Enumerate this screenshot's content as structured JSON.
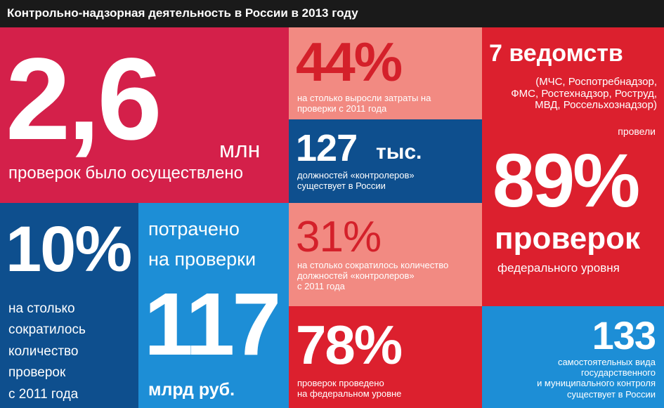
{
  "header": {
    "title": "Контрольно-надзорная деятельность в России в 2013 году"
  },
  "colors": {
    "crimson": "#d4204a",
    "red": "#dc202e",
    "pink": "#f28a82",
    "dark_blue": "#0e4f8e",
    "blue": "#1d8ed6",
    "header_bg": "#1a1a1a",
    "pink_text": "#d4202a"
  },
  "inspections_total": {
    "value": "2,6",
    "unit": "млн",
    "caption": "проверок было осуществлено"
  },
  "cost_growth": {
    "value": "44%",
    "caption": [
      "на столько выросли затраты на",
      "проверки с 2011 года"
    ]
  },
  "agencies": {
    "title": "7 ведомств",
    "list": [
      "(МЧС, Роспотребнадзор,",
      "ФМС, Ростехнадзор, Роструд,",
      "МВД, Россельхознадзор)"
    ],
    "conducted": "провели",
    "value": "89%",
    "label": "проверок",
    "sublabel": "федерального уровня"
  },
  "controllers": {
    "value": "127",
    "unit": "тыс.",
    "caption": [
      "должностей «контролеров»",
      "существует в России"
    ]
  },
  "inspections_drop": {
    "value": "10%",
    "caption": [
      "на столько",
      "сократилось",
      "количество",
      "проверок",
      "с 2011 года"
    ]
  },
  "spending": {
    "intro": [
      "потрачено",
      "на проверки"
    ],
    "value": "117",
    "unit": "млрд руб."
  },
  "controllers_drop": {
    "value": "31%",
    "caption": [
      "на столько сократилось количество",
      "должностей «контролеров»",
      "с 2011 года"
    ]
  },
  "federal_share": {
    "value": "78%",
    "caption": [
      "проверок проведено",
      "на федеральном уровне"
    ]
  },
  "control_types": {
    "value": "133",
    "caption": [
      "самостоятельных вида",
      "государственного",
      "и муниципального контроля",
      "существует в России"
    ]
  }
}
